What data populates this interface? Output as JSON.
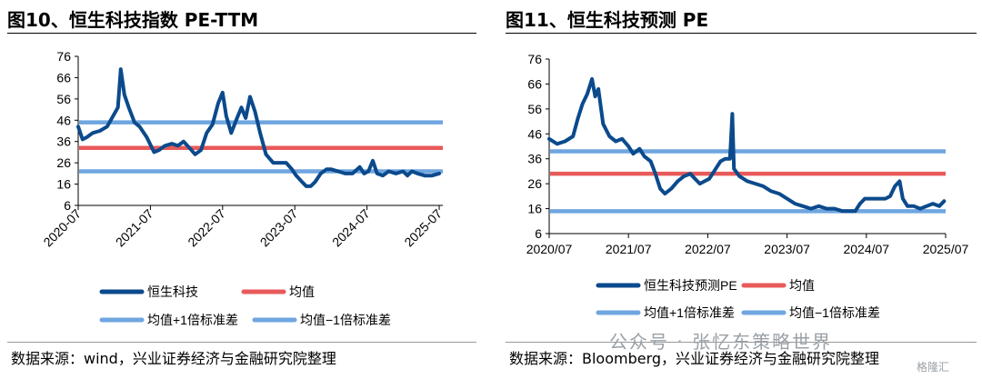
{
  "left": {
    "title": "图10、恒生科技指数 PE-TTM",
    "source": "数据来源：wind，兴业证券经济与金融研究院整理"
  },
  "right": {
    "title": "图11、恒生科技预测 PE",
    "source": "数据来源：Bloomberg，兴业证券经济与金融研究院整理"
  },
  "watermark": {
    "text": "公众号 · 张忆东策略世界",
    "sub": "格隆汇"
  },
  "chart_data": [
    {
      "type": "line",
      "title": "",
      "xlabel": "",
      "ylabel": "",
      "ylim": [
        6,
        76
      ],
      "yticks": [
        "6",
        "16",
        "26",
        "36",
        "46",
        "56",
        "66",
        "76"
      ],
      "xlim": [
        2020.5,
        2025.55
      ],
      "xticks": [
        {
          "label": "2020-07",
          "x": 2020.5
        },
        {
          "label": "2021-07",
          "x": 2021.5
        },
        {
          "label": "2022-07",
          "x": 2022.5
        },
        {
          "label": "2023-07",
          "x": 2023.5
        },
        {
          "label": "2024-07",
          "x": 2024.5
        },
        {
          "label": "2025-07",
          "x": 2025.5
        }
      ],
      "grid": false,
      "legend_position": "bottom",
      "colors": {
        "series": "#0b4a8c",
        "mean": "#e85a5a",
        "band": "#6fa6e0"
      },
      "series": [
        {
          "name": "恒生科技",
          "points": [
            [
              2020.5,
              43
            ],
            [
              2020.56,
              37
            ],
            [
              2020.62,
              38
            ],
            [
              2020.7,
              40
            ],
            [
              2020.8,
              41
            ],
            [
              2020.9,
              43
            ],
            [
              2021.0,
              49
            ],
            [
              2021.05,
              52
            ],
            [
              2021.09,
              70
            ],
            [
              2021.14,
              58
            ],
            [
              2021.2,
              52
            ],
            [
              2021.28,
              45
            ],
            [
              2021.35,
              43
            ],
            [
              2021.45,
              38
            ],
            [
              2021.55,
              31
            ],
            [
              2021.62,
              32
            ],
            [
              2021.7,
              34
            ],
            [
              2021.8,
              35
            ],
            [
              2021.88,
              34
            ],
            [
              2021.96,
              36
            ],
            [
              2022.04,
              33
            ],
            [
              2022.12,
              30
            ],
            [
              2022.2,
              32
            ],
            [
              2022.28,
              40
            ],
            [
              2022.36,
              44
            ],
            [
              2022.44,
              54
            ],
            [
              2022.5,
              59
            ],
            [
              2022.55,
              48
            ],
            [
              2022.62,
              40
            ],
            [
              2022.7,
              47
            ],
            [
              2022.76,
              52
            ],
            [
              2022.82,
              47
            ],
            [
              2022.88,
              57
            ],
            [
              2022.95,
              50
            ],
            [
              2023.02,
              40
            ],
            [
              2023.1,
              30
            ],
            [
              2023.2,
              26
            ],
            [
              2023.3,
              26
            ],
            [
              2023.38,
              26
            ],
            [
              2023.46,
              23
            ],
            [
              2023.52,
              20
            ],
            [
              2023.6,
              17
            ],
            [
              2023.66,
              15
            ],
            [
              2023.72,
              15
            ],
            [
              2023.78,
              17
            ],
            [
              2023.86,
              21
            ],
            [
              2023.94,
              23
            ],
            [
              2024.0,
              23
            ],
            [
              2024.1,
              22
            ],
            [
              2024.2,
              21
            ],
            [
              2024.3,
              21
            ],
            [
              2024.4,
              24
            ],
            [
              2024.46,
              21
            ],
            [
              2024.52,
              22
            ],
            [
              2024.58,
              27
            ],
            [
              2024.64,
              21
            ],
            [
              2024.72,
              20
            ],
            [
              2024.8,
              22
            ],
            [
              2024.9,
              21
            ],
            [
              2025.0,
              22
            ],
            [
              2025.06,
              20
            ],
            [
              2025.12,
              22
            ],
            [
              2025.2,
              21
            ],
            [
              2025.3,
              20
            ],
            [
              2025.4,
              20
            ],
            [
              2025.5,
              21
            ]
          ]
        },
        {
          "name": "均值",
          "value": 33
        },
        {
          "name": "均值+1倍标准差",
          "value": 45
        },
        {
          "name": "均值−1倍标准差",
          "value": 22
        }
      ]
    },
    {
      "type": "line",
      "title": "",
      "xlabel": "",
      "ylabel": "",
      "ylim": [
        6,
        76
      ],
      "yticks": [
        "6",
        "16",
        "26",
        "36",
        "46",
        "56",
        "66",
        "76"
      ],
      "xlim": [
        2020.5,
        2025.5
      ],
      "xticks": [
        {
          "label": "2020/07",
          "x": 2020.5
        },
        {
          "label": "2021/07",
          "x": 2021.5
        },
        {
          "label": "2022/07",
          "x": 2022.5
        },
        {
          "label": "2023/07",
          "x": 2023.5
        },
        {
          "label": "2024/07",
          "x": 2024.5
        },
        {
          "label": "2025/07",
          "x": 2025.5
        }
      ],
      "grid": false,
      "legend_position": "bottom",
      "colors": {
        "series": "#0b4a8c",
        "mean": "#e85a5a",
        "band": "#6fa6e0"
      },
      "series": [
        {
          "name": "恒生科技预测PE",
          "points": [
            [
              2020.5,
              44
            ],
            [
              2020.6,
              42
            ],
            [
              2020.7,
              43
            ],
            [
              2020.8,
              45
            ],
            [
              2020.86,
              52
            ],
            [
              2020.92,
              58
            ],
            [
              2020.98,
              62
            ],
            [
              2021.04,
              68
            ],
            [
              2021.08,
              61
            ],
            [
              2021.12,
              64
            ],
            [
              2021.18,
              50
            ],
            [
              2021.26,
              45
            ],
            [
              2021.34,
              43
            ],
            [
              2021.42,
              44
            ],
            [
              2021.5,
              41
            ],
            [
              2021.56,
              38
            ],
            [
              2021.64,
              40
            ],
            [
              2021.7,
              37
            ],
            [
              2021.78,
              35
            ],
            [
              2021.84,
              30
            ],
            [
              2021.9,
              24
            ],
            [
              2021.96,
              22
            ],
            [
              2022.04,
              24
            ],
            [
              2022.12,
              27
            ],
            [
              2022.2,
              29
            ],
            [
              2022.28,
              30
            ],
            [
              2022.34,
              28
            ],
            [
              2022.4,
              26
            ],
            [
              2022.46,
              27
            ],
            [
              2022.52,
              28
            ],
            [
              2022.58,
              31
            ],
            [
              2022.62,
              33
            ],
            [
              2022.66,
              35
            ],
            [
              2022.72,
              36
            ],
            [
              2022.78,
              36
            ],
            [
              2022.81,
              54
            ],
            [
              2022.83,
              32
            ],
            [
              2022.9,
              29
            ],
            [
              2023.0,
              27
            ],
            [
              2023.1,
              26
            ],
            [
              2023.2,
              25
            ],
            [
              2023.3,
              23
            ],
            [
              2023.4,
              22
            ],
            [
              2023.5,
              20
            ],
            [
              2023.6,
              18
            ],
            [
              2023.7,
              17
            ],
            [
              2023.8,
              16
            ],
            [
              2023.9,
              17
            ],
            [
              2024.0,
              16
            ],
            [
              2024.1,
              16
            ],
            [
              2024.2,
              15
            ],
            [
              2024.3,
              15
            ],
            [
              2024.36,
              15
            ],
            [
              2024.42,
              18
            ],
            [
              2024.48,
              20
            ],
            [
              2024.56,
              20
            ],
            [
              2024.66,
              20
            ],
            [
              2024.74,
              20
            ],
            [
              2024.8,
              21
            ],
            [
              2024.86,
              25
            ],
            [
              2024.92,
              27
            ],
            [
              2024.96,
              20
            ],
            [
              2025.02,
              17
            ],
            [
              2025.1,
              17
            ],
            [
              2025.18,
              16
            ],
            [
              2025.26,
              17
            ],
            [
              2025.34,
              18
            ],
            [
              2025.42,
              17
            ],
            [
              2025.48,
              19
            ]
          ]
        },
        {
          "name": "均值",
          "value": 30
        },
        {
          "name": "均值+1倍标准差",
          "value": 39
        },
        {
          "name": "均值−1倍标准差",
          "value": 15
        }
      ]
    }
  ]
}
